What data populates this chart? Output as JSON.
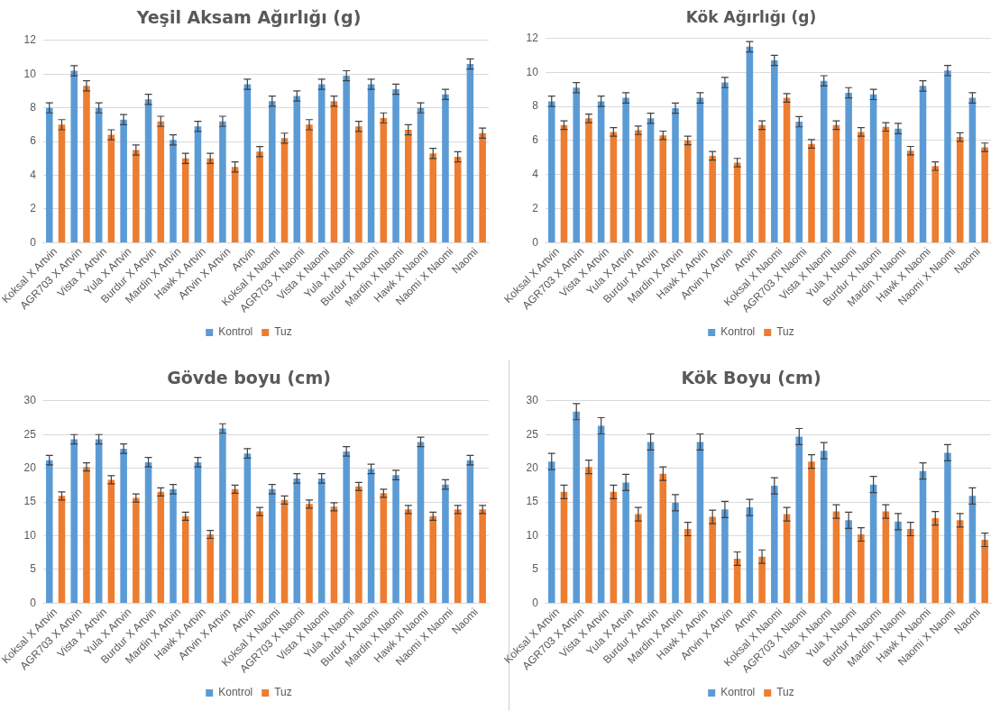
{
  "chart_data": [
    {
      "type": "bar",
      "title": "Yeşil Aksam Ağırlığı (g)",
      "categories": [
        "Koksal X Artvin",
        "AGR703 X Artvin",
        "Vista X Artvin",
        "Yula X Artvin",
        "Burdur X Artvin",
        "Mardin X Artvin",
        "Hawk X Artvin",
        "Artvin X Artvin",
        "Artvin",
        "Koksal X Naomi",
        "AGR703 X Naomi",
        "Vista X Naomi",
        "Yula X Naomi",
        "Burdur X Naomi",
        "Mardin X Naomi",
        "Hawk X Naomi",
        "Naomi X Naomi",
        "Naomi"
      ],
      "series": [
        {
          "name": "Kontrol",
          "color": "#5b9bd5",
          "values": [
            8.0,
            10.2,
            8.0,
            7.3,
            8.5,
            6.1,
            6.9,
            7.2,
            9.4,
            8.4,
            8.7,
            9.4,
            9.9,
            9.4,
            9.1,
            8.0,
            8.8,
            10.6
          ],
          "errors": [
            0.3,
            0.3,
            0.3,
            0.3,
            0.3,
            0.3,
            0.3,
            0.3,
            0.3,
            0.3,
            0.3,
            0.3,
            0.3,
            0.3,
            0.3,
            0.3,
            0.3,
            0.3
          ]
        },
        {
          "name": "Tuz",
          "color": "#ed7d31",
          "values": [
            7.0,
            9.3,
            6.4,
            5.5,
            7.2,
            5.0,
            5.0,
            4.5,
            5.4,
            6.2,
            7.0,
            8.4,
            6.9,
            7.4,
            6.7,
            5.3,
            5.1,
            6.5
          ],
          "errors": [
            0.3,
            0.3,
            0.3,
            0.3,
            0.3,
            0.3,
            0.3,
            0.3,
            0.3,
            0.3,
            0.3,
            0.3,
            0.3,
            0.3,
            0.3,
            0.3,
            0.3,
            0.3
          ]
        }
      ],
      "ylim": [
        0,
        12
      ],
      "yticks": [
        0,
        2,
        4,
        6,
        8,
        10,
        12
      ],
      "grid": "y",
      "legend": "bottom"
    },
    {
      "type": "bar",
      "title": "Kök Ağırlığı (g)",
      "categories": [
        "Koksal X Artvin",
        "AGR703 X Artvin",
        "Vista X Artvin",
        "Yula X Artvin",
        "Burdur X Artvin",
        "Mardin X Artvin",
        "Hawk X Artvin",
        "Artvin X Artvin",
        "Artvin",
        "Koksal X Naomi",
        "AGR703 X Naomi",
        "Vista X Naomi",
        "Yula X Naomi",
        "Burdur X Naomi",
        "Mardin X Naomi",
        "Hawk X Naomi",
        "Naomi X Naomi",
        "Naomi"
      ],
      "series": [
        {
          "name": "Kontrol",
          "color": "#5b9bd5",
          "values": [
            8.3,
            9.1,
            8.3,
            8.5,
            7.3,
            7.9,
            8.5,
            9.4,
            11.5,
            10.7,
            7.1,
            9.5,
            8.8,
            8.7,
            6.7,
            9.2,
            10.1,
            8.5
          ],
          "errors": [
            0.3,
            0.3,
            0.3,
            0.3,
            0.3,
            0.3,
            0.3,
            0.3,
            0.3,
            0.3,
            0.3,
            0.3,
            0.3,
            0.3,
            0.3,
            0.3,
            0.3,
            0.3
          ]
        },
        {
          "name": "Tuz",
          "color": "#ed7d31",
          "values": [
            6.9,
            7.3,
            6.5,
            6.6,
            6.3,
            6.0,
            5.1,
            4.7,
            6.9,
            8.5,
            5.8,
            6.9,
            6.5,
            6.8,
            5.4,
            4.5,
            6.2,
            5.6
          ],
          "errors": [
            0.25,
            0.25,
            0.25,
            0.25,
            0.25,
            0.25,
            0.25,
            0.25,
            0.25,
            0.25,
            0.25,
            0.25,
            0.25,
            0.25,
            0.25,
            0.25,
            0.25,
            0.25
          ]
        }
      ],
      "ylim": [
        0,
        12
      ],
      "yticks": [
        0,
        2,
        4,
        6,
        8,
        10,
        12
      ],
      "grid": "y",
      "legend": "bottom"
    },
    {
      "type": "bar",
      "title": "Gövde boyu (cm)",
      "categories": [
        "Koksal X Artvin",
        "AGR703 X Artvin",
        "Vista X Artvin",
        "Yula X Artvin",
        "Burdur X Artvin",
        "Mardin X Artvin",
        "Hawk X Artvin",
        "Artvin X Artvin",
        "Artvin",
        "Koksal X Naomi",
        "AGR703 X Naomi",
        "Vista X Naomi",
        "Yula X Naomi",
        "Burdur X Naomi",
        "Mardin X Naomi",
        "Hawk X Naomi",
        "Naomi X Naomi",
        "Naomi"
      ],
      "series": [
        {
          "name": "Kontrol",
          "color": "#5b9bd5",
          "values": [
            21.2,
            24.3,
            24.3,
            22.9,
            20.9,
            16.9,
            20.9,
            25.9,
            22.2,
            16.9,
            18.5,
            18.5,
            22.5,
            19.9,
            19.0,
            23.9,
            17.6,
            21.2
          ],
          "errors": [
            0.7,
            0.7,
            0.7,
            0.7,
            0.7,
            0.7,
            0.7,
            0.7,
            0.7,
            0.7,
            0.7,
            0.7,
            0.7,
            0.7,
            0.7,
            0.7,
            0.7,
            0.7
          ]
        },
        {
          "name": "Tuz",
          "color": "#ed7d31",
          "values": [
            15.9,
            20.2,
            18.3,
            15.6,
            16.5,
            12.9,
            10.2,
            16.9,
            13.6,
            15.3,
            14.7,
            14.3,
            17.3,
            16.3,
            13.9,
            12.9,
            13.9,
            13.9
          ],
          "errors": [
            0.6,
            0.6,
            0.6,
            0.6,
            0.6,
            0.6,
            0.6,
            0.6,
            0.6,
            0.6,
            0.6,
            0.6,
            0.6,
            0.6,
            0.6,
            0.6,
            0.6,
            0.6
          ]
        }
      ],
      "ylim": [
        0,
        30
      ],
      "yticks": [
        0,
        5,
        10,
        15,
        20,
        25,
        30
      ],
      "grid": "y",
      "legend": "bottom"
    },
    {
      "type": "bar",
      "title": "Kök Boyu (cm)",
      "categories": [
        "Koksal X Artvin",
        "AGR703 X Artvin",
        "Vista X Artvin",
        "Yula X Artvin",
        "Burdur X Artvin",
        "Mardin X Artvin",
        "Hawk X Artvin",
        "Artvin X Artvin",
        "Artvin",
        "Koksal X Naomi",
        "AGR703 X Naomi",
        "Vista X Naomi",
        "Yula X Naomi",
        "Burdur X Naomi",
        "Mardin X Naomi",
        "Hawk X Naomi",
        "Naomi X Naomi",
        "Naomi"
      ],
      "series": [
        {
          "name": "Kontrol",
          "color": "#5b9bd5",
          "values": [
            21.0,
            28.4,
            26.3,
            17.9,
            23.9,
            14.9,
            23.9,
            13.9,
            14.2,
            17.4,
            24.7,
            22.6,
            12.3,
            17.6,
            12.1,
            19.6,
            22.3,
            15.9
          ],
          "errors": [
            1.2,
            1.2,
            1.2,
            1.2,
            1.2,
            1.2,
            1.2,
            1.2,
            1.2,
            1.2,
            1.2,
            1.2,
            1.2,
            1.2,
            1.2,
            1.2,
            1.2,
            1.2
          ]
        },
        {
          "name": "Tuz",
          "color": "#ed7d31",
          "values": [
            16.5,
            20.2,
            16.5,
            13.2,
            19.2,
            11.0,
            12.8,
            6.6,
            6.9,
            13.2,
            21.0,
            13.6,
            10.2,
            13.6,
            11.0,
            12.6,
            12.3,
            9.4
          ],
          "errors": [
            1.0,
            1.0,
            1.0,
            1.0,
            1.0,
            1.0,
            1.0,
            1.0,
            1.0,
            1.0,
            1.0,
            1.0,
            1.0,
            1.0,
            1.0,
            1.0,
            1.0,
            1.0
          ]
        }
      ],
      "ylim": [
        0,
        30
      ],
      "yticks": [
        0,
        5,
        10,
        15,
        20,
        25,
        30
      ],
      "grid": "y",
      "legend": "bottom"
    }
  ]
}
